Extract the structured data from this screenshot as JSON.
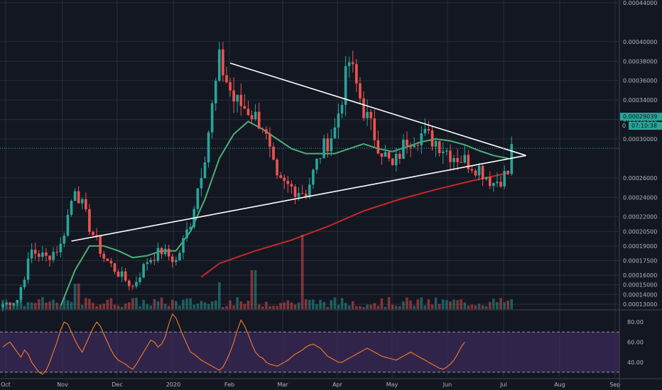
{
  "colors": {
    "background": "#131722",
    "grid": "#2a2e39",
    "up": "#26a69a",
    "down": "#ef5350",
    "ma_fast": "#4caf78",
    "ma_slow": "#c62828",
    "trendline": "#ffffff",
    "rsi_line": "#f57c2b",
    "rsi_band": "#4a2f6b",
    "price_line": "#26a69a"
  },
  "chart_data": {
    "type": "candlestick",
    "price_axis": {
      "ylim": [
        0.000125,
        0.00044
      ],
      "tick_labels": [
        "0.00044000",
        "0.00040000",
        "0.00038000",
        "0.00036000",
        "0.00034000",
        "0.00032000",
        "0.00030000",
        "0.00026000",
        "0.00024000",
        "0.00022000",
        "0.00020500",
        "0.00019000",
        "0.00017500",
        "0.00016000",
        "0.00015000",
        "0.00014000",
        "0.00013000"
      ],
      "tick_values": [
        0.00044,
        0.0004,
        0.00038,
        0.00036,
        0.00034,
        0.00032,
        0.0003,
        0.00026,
        0.00024,
        0.00022,
        0.000205,
        0.00019,
        0.000175,
        0.00016,
        0.00015,
        0.00014,
        0.00013
      ]
    },
    "time_axis": {
      "labels": [
        "Oct",
        "Nov",
        "Dec",
        "2020",
        "Feb",
        "Mar",
        "Apr",
        "May",
        "Jun",
        "Jul",
        "Aug",
        "Sep"
      ]
    },
    "current_price": "0.00029039",
    "countdown": "07:10:38",
    "countdown_prefix": "0",
    "price_anchors": [
      [
        0,
        0.00013
      ],
      [
        4,
        0.000135
      ],
      [
        8,
        0.000185
      ],
      [
        12,
        0.000178
      ],
      [
        16,
        0.00019
      ],
      [
        20,
        0.000252
      ],
      [
        24,
        0.00021
      ],
      [
        28,
        0.000178
      ],
      [
        32,
        0.000162
      ],
      [
        36,
        0.000148
      ],
      [
        40,
        0.000175
      ],
      [
        44,
        0.000185
      ],
      [
        48,
        0.000174
      ],
      [
        52,
        0.000215
      ],
      [
        56,
        0.000285
      ],
      [
        60,
        0.00038
      ],
      [
        64,
        0.00034
      ],
      [
        68,
        0.00033
      ],
      [
        72,
        0.000315
      ],
      [
        76,
        0.000255
      ],
      [
        80,
        0.00025
      ],
      [
        84,
        0.000245
      ],
      [
        88,
        0.000285
      ],
      [
        92,
        0.00031
      ],
      [
        96,
        0.00038
      ],
      [
        100,
        0.00033
      ],
      [
        104,
        0.000295
      ],
      [
        108,
        0.00027
      ],
      [
        112,
        0.0003
      ],
      [
        116,
        0.000305
      ],
      [
        120,
        0.000298
      ],
      [
        124,
        0.000285
      ],
      [
        128,
        0.000278
      ],
      [
        132,
        0.00027
      ],
      [
        136,
        0.000255
      ],
      [
        140,
        0.000265
      ],
      [
        141,
        0.00029
      ]
    ],
    "ma_fast": [
      [
        16,
        0.000128
      ],
      [
        20,
        0.000165
      ],
      [
        24,
        0.00019
      ],
      [
        28,
        0.00019
      ],
      [
        32,
        0.000185
      ],
      [
        36,
        0.000178
      ],
      [
        40,
        0.00018
      ],
      [
        44,
        0.000185
      ],
      [
        48,
        0.000185
      ],
      [
        52,
        0.000205
      ],
      [
        56,
        0.000238
      ],
      [
        60,
        0.00028
      ],
      [
        64,
        0.000305
      ],
      [
        68,
        0.000318
      ],
      [
        72,
        0.00031
      ],
      [
        76,
        0.0003
      ],
      [
        80,
        0.00029
      ],
      [
        84,
        0.000285
      ],
      [
        88,
        0.000285
      ],
      [
        92,
        0.000285
      ],
      [
        96,
        0.00029
      ],
      [
        100,
        0.000295
      ],
      [
        104,
        0.00029
      ],
      [
        108,
        0.000287
      ],
      [
        112,
        0.000292
      ],
      [
        116,
        0.000297
      ],
      [
        120,
        0.0003
      ],
      [
        124,
        0.000298
      ],
      [
        128,
        0.000294
      ],
      [
        132,
        0.000288
      ],
      [
        136,
        0.000283
      ],
      [
        140,
        0.00028
      ]
    ],
    "ma_slow": [
      [
        55,
        0.000158
      ],
      [
        60,
        0.000172
      ],
      [
        70,
        0.000185
      ],
      [
        80,
        0.000196
      ],
      [
        90,
        0.00021
      ],
      [
        100,
        0.000226
      ],
      [
        110,
        0.000238
      ],
      [
        120,
        0.000248
      ],
      [
        130,
        0.000257
      ],
      [
        140,
        0.000265
      ]
    ],
    "trendlines": [
      {
        "points": [
          [
            19,
            0.000195
          ],
          [
            145,
            0.000283
          ]
        ]
      },
      {
        "points": [
          [
            63,
            0.000378
          ],
          [
            145,
            0.000283
          ]
        ]
      }
    ],
    "rsi": {
      "ylim": [
        25,
        90
      ],
      "tick_labels": [
        "80.00",
        "60.00",
        "40.00"
      ],
      "tick_values": [
        80,
        60,
        40
      ],
      "band": [
        30,
        70
      ],
      "values": [
        55,
        58,
        60,
        55,
        50,
        45,
        52,
        48,
        40,
        35,
        30,
        28,
        32,
        40,
        50,
        60,
        72,
        80,
        78,
        70,
        62,
        55,
        50,
        58,
        66,
        74,
        80,
        76,
        68,
        60,
        52,
        46,
        42,
        40,
        38,
        35,
        33,
        38,
        44,
        50,
        56,
        62,
        60,
        55,
        58,
        65,
        78,
        88,
        84,
        75,
        66,
        58,
        50,
        48,
        45,
        42,
        40,
        38,
        36,
        34,
        32,
        35,
        42,
        50,
        60,
        72,
        82,
        76,
        68,
        58,
        50,
        46,
        44,
        40,
        38,
        37,
        36,
        38,
        40,
        42,
        45,
        48,
        50,
        52,
        55,
        57,
        58,
        56,
        54,
        50,
        46,
        44,
        42,
        40,
        40,
        42,
        44,
        46,
        48,
        50,
        52,
        54,
        52,
        50,
        48,
        46,
        45,
        44,
        43,
        42,
        44,
        46,
        48,
        50,
        48,
        46,
        44,
        42,
        40,
        38,
        36,
        34,
        33,
        35,
        38,
        42,
        48,
        55,
        60
      ]
    }
  }
}
